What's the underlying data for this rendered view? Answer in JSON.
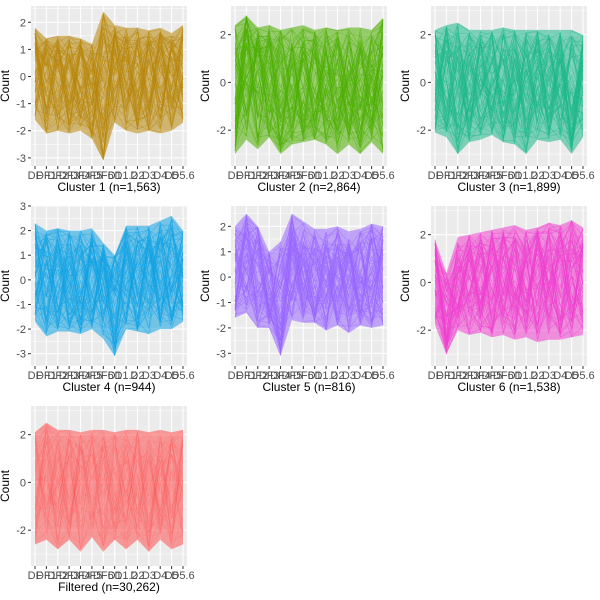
{
  "x_tick_labels": [
    "DF",
    "DF1",
    "DF2",
    "DF3",
    "DF4",
    "DF5",
    "DF6",
    "D1",
    "D1.2",
    "D2",
    "D3",
    "D4",
    "D5",
    "D5.6"
  ],
  "ylabel": "Count",
  "colors": {
    "panel_background": "#ebebeb",
    "grid": "#ffffff",
    "page_background": "#ffffff"
  },
  "chart_data": [
    {
      "type": "line",
      "title": "Cluster 1 (n=1,563)",
      "color": "#b8860b",
      "ylim": [
        -3.3,
        2.6
      ],
      "yticks": [
        -3,
        -2,
        -1,
        0,
        1,
        2
      ],
      "ytick_labels": [
        "-3",
        "-2",
        "-1",
        "0",
        "1",
        "2"
      ],
      "band_upper": [
        1.8,
        1.4,
        1.5,
        1.5,
        1.4,
        1.2,
        2.4,
        1.9,
        1.8,
        1.8,
        1.7,
        1.8,
        1.6,
        1.9
      ],
      "band_lower": [
        -1.6,
        -2.1,
        -2.0,
        -2.1,
        -2.0,
        -2.3,
        -3.1,
        -1.7,
        -2.0,
        -2.1,
        -2.0,
        -2.1,
        -2.0,
        -1.7
      ],
      "band_mid": [
        0.6,
        0.3,
        0.1,
        0.0,
        -0.2,
        -0.8,
        -1.3,
        0.5,
        0.4,
        0.3,
        0.2,
        0.3,
        0.2,
        0.4
      ]
    },
    {
      "type": "line",
      "title": "Cluster 2 (n=2,864)",
      "color": "#4daf00",
      "ylim": [
        -3.5,
        3.2
      ],
      "yticks": [
        -2,
        0,
        2
      ],
      "ytick_labels": [
        "-2",
        "0",
        "2"
      ],
      "band_upper": [
        2.4,
        2.8,
        2.3,
        2.4,
        2.2,
        2.3,
        2.4,
        2.2,
        2.3,
        2.2,
        2.3,
        2.3,
        2.2,
        2.7
      ],
      "band_lower": [
        -3.0,
        -2.4,
        -2.8,
        -2.3,
        -3.0,
        -2.6,
        -2.5,
        -2.4,
        -2.6,
        -3.0,
        -2.6,
        -3.0,
        -2.5,
        -3.0
      ],
      "band_mid": [
        -0.4,
        0.8,
        0.2,
        0.2,
        0.0,
        0.1,
        0.1,
        0.0,
        0.0,
        -0.2,
        0.0,
        -0.1,
        0.0,
        0.1
      ]
    },
    {
      "type": "line",
      "title": "Cluster 3 (n=1,899)",
      "color": "#1db88a",
      "ylim": [
        -3.5,
        3.2
      ],
      "yticks": [
        -2,
        0,
        2
      ],
      "ytick_labels": [
        "-2",
        "0",
        "2"
      ],
      "band_upper": [
        2.2,
        2.4,
        2.5,
        2.2,
        2.2,
        2.2,
        2.3,
        2.2,
        2.2,
        2.2,
        2.2,
        2.2,
        2.2,
        2.0
      ],
      "band_lower": [
        -2.1,
        -2.3,
        -3.0,
        -2.5,
        -2.4,
        -2.2,
        -2.5,
        -2.6,
        -3.0,
        -2.4,
        -2.5,
        -2.4,
        -3.0,
        -2.3
      ],
      "band_mid": [
        0.3,
        0.3,
        -0.5,
        0.0,
        0.1,
        0.1,
        0.0,
        0.0,
        -0.4,
        0.0,
        0.0,
        0.1,
        -0.5,
        0.0
      ]
    },
    {
      "type": "line",
      "title": "Cluster 4 (n=944)",
      "color": "#10a2e4",
      "ylim": [
        -3.5,
        3.0
      ],
      "yticks": [
        -3,
        -2,
        -1,
        0,
        1,
        2,
        3
      ],
      "ytick_labels": [
        "-3",
        "-2",
        "-1",
        "0",
        "1",
        "2",
        "3"
      ],
      "band_upper": [
        2.3,
        2.0,
        2.1,
        2.0,
        2.0,
        2.1,
        1.5,
        1.0,
        2.2,
        2.2,
        2.2,
        2.4,
        2.6,
        2.0
      ],
      "band_lower": [
        -1.7,
        -2.3,
        -2.1,
        -2.1,
        -2.2,
        -2.0,
        -2.4,
        -3.1,
        -2.0,
        -2.1,
        -2.2,
        -2.0,
        -2.0,
        -1.7
      ],
      "band_mid": [
        0.4,
        0.2,
        0.2,
        0.1,
        0.1,
        0.2,
        -0.3,
        -1.2,
        0.3,
        0.3,
        0.3,
        0.4,
        0.5,
        0.3
      ]
    },
    {
      "type": "line",
      "title": "Cluster 5 (n=816)",
      "color": "#9966ff",
      "ylim": [
        -3.5,
        2.8
      ],
      "yticks": [
        -3,
        -2,
        -1,
        0,
        1,
        2
      ],
      "ytick_labels": [
        "-3",
        "-2",
        "-1",
        "0",
        "1",
        "2"
      ],
      "band_upper": [
        2.0,
        2.5,
        2.0,
        1.0,
        1.4,
        2.5,
        2.2,
        1.9,
        1.9,
        2.0,
        1.8,
        1.9,
        2.1,
        2.0
      ],
      "band_lower": [
        -1.6,
        -1.4,
        -2.0,
        -2.0,
        -3.1,
        -1.7,
        -1.8,
        -1.8,
        -2.1,
        -1.9,
        -2.2,
        -1.9,
        -2.0,
        -1.9
      ],
      "band_mid": [
        0.3,
        0.8,
        0.3,
        -0.6,
        -1.3,
        0.6,
        0.4,
        0.2,
        0.1,
        0.2,
        0.0,
        0.1,
        0.3,
        0.2
      ]
    },
    {
      "type": "line",
      "title": "Cluster 6 (n=1,538)",
      "color": "#ee3fd0",
      "ylim": [
        -3.5,
        3.2
      ],
      "yticks": [
        -2,
        0,
        2
      ],
      "ytick_labels": [
        "-2",
        "0",
        "2"
      ],
      "band_upper": [
        1.8,
        0.4,
        1.9,
        2.0,
        2.1,
        2.2,
        2.3,
        2.4,
        2.2,
        2.3,
        2.5,
        2.4,
        2.6,
        2.3
      ],
      "band_lower": [
        -1.8,
        -3.0,
        -2.0,
        -2.2,
        -2.1,
        -2.3,
        -2.2,
        -2.4,
        -2.3,
        -2.5,
        -2.4,
        -2.4,
        -2.3,
        -2.2
      ],
      "band_mid": [
        0.4,
        -1.3,
        -0.2,
        0.1,
        0.2,
        0.3,
        0.4,
        0.5,
        0.3,
        0.4,
        0.5,
        0.4,
        0.5,
        0.4
      ]
    },
    {
      "type": "line",
      "title": "Filtered (n=30,262)",
      "color": "#ff5252",
      "ylim": [
        -3.5,
        3.2
      ],
      "yticks": [
        -2,
        0,
        2
      ],
      "ytick_labels": [
        "-2",
        "0",
        "2"
      ],
      "band_upper": [
        2.1,
        2.5,
        2.2,
        2.2,
        2.1,
        2.2,
        2.2,
        2.1,
        2.2,
        2.2,
        2.1,
        2.2,
        2.1,
        2.2
      ],
      "band_lower": [
        -2.6,
        -2.4,
        -2.8,
        -2.4,
        -2.9,
        -2.3,
        -2.9,
        -2.4,
        -2.8,
        -2.4,
        -2.9,
        -2.4,
        -2.8,
        -2.6
      ],
      "band_mid": [
        0.0,
        0.1,
        -0.2,
        0.0,
        -0.2,
        0.0,
        -0.1,
        0.0,
        -0.1,
        0.0,
        -0.2,
        0.0,
        -0.1,
        0.0
      ]
    }
  ]
}
